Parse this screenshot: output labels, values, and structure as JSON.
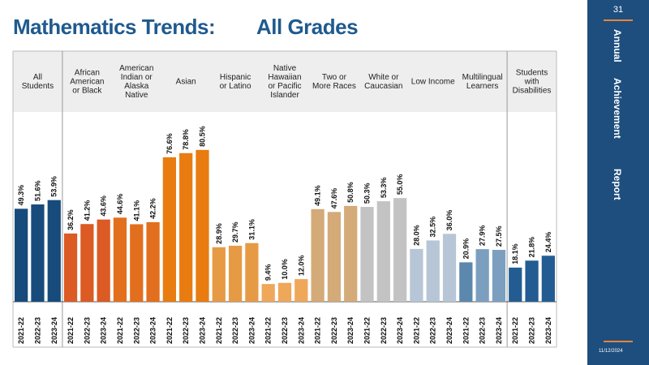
{
  "page": {
    "title_left": "Mathematics Trends:",
    "title_right": "All   Grades",
    "page_number": "31",
    "sidebar_words": [
      "Annual",
      "Achievement",
      "Report"
    ],
    "date": "11/12/2024"
  },
  "colors": {
    "sidebar": "#1d4e7e",
    "accent": "#e8833a",
    "title": "#1f5a8e",
    "header_bg": "#eeeeee"
  },
  "chart_data": {
    "type": "bar",
    "title": "Mathematics Trends: All Grades",
    "categories": [
      "2021-22",
      "2022-23",
      "2023-24"
    ],
    "ylim": [
      0,
      100
    ],
    "grid": false,
    "legend": "none",
    "groups": [
      {
        "label": "All Students",
        "values": [
          49.3,
          51.6,
          53.9
        ],
        "labels": [
          "49.3%",
          "51.6%",
          "53.9%"
        ],
        "colors": [
          "#174b7b",
          "#174b7b",
          "#174b7b"
        ]
      },
      {
        "label": "African American or Black",
        "values": [
          36.2,
          41.2,
          43.6
        ],
        "labels": [
          "36.2%",
          "41.2%",
          "43.6%"
        ],
        "colors": [
          "#dc5a24",
          "#dc5a24",
          "#dc5a24"
        ]
      },
      {
        "label": "American Indian or Alaska Native",
        "values": [
          44.6,
          41.1,
          42.2
        ],
        "labels": [
          "44.6%",
          "41.1%",
          "42.2%"
        ],
        "colors": [
          "#e26f1d",
          "#e26f1d",
          "#e26f1d"
        ]
      },
      {
        "label": "Asian",
        "values": [
          76.6,
          78.8,
          80.5
        ],
        "labels": [
          "76.6%",
          "78.8%",
          "80.5%"
        ],
        "colors": [
          "#e87c10",
          "#e87c10",
          "#e87c10"
        ]
      },
      {
        "label": "Hispanic or Latino",
        "values": [
          28.9,
          29.7,
          31.1
        ],
        "labels": [
          "28.9%",
          "29.7%",
          "31.1%"
        ],
        "colors": [
          "#e79a44",
          "#e79a44",
          "#e79a44"
        ]
      },
      {
        "label": "Native Hawaiian or Pacific Islander",
        "values": [
          9.4,
          10.0,
          12.0
        ],
        "labels": [
          "9.4%",
          "10.0%",
          "12.0%"
        ],
        "colors": [
          "#efa75a",
          "#efa75a",
          "#efa75a"
        ]
      },
      {
        "label": "Two or More Races",
        "values": [
          49.1,
          47.6,
          50.8
        ],
        "labels": [
          "49.1%",
          "47.6%",
          "50.8%"
        ],
        "colors": [
          "#d4aa78",
          "#d4aa78",
          "#d4aa78"
        ]
      },
      {
        "label": "White or Caucasian",
        "values": [
          50.3,
          53.3,
          55.0
        ],
        "labels": [
          "50.3%",
          "53.3%",
          "55.0%"
        ],
        "colors": [
          "#c3c3c3",
          "#c3c3c3",
          "#c3c3c3"
        ]
      },
      {
        "label": "Low Income",
        "values": [
          28.0,
          32.5,
          36.0
        ],
        "labels": [
          "28.0%",
          "32.5%",
          "36.0%"
        ],
        "colors": [
          "#b6c6d6",
          "#b6c6d6",
          "#b6c6d6"
        ]
      },
      {
        "label": "Multilingual Learners",
        "values": [
          20.9,
          27.9,
          27.5
        ],
        "labels": [
          "20.9%",
          "27.9%",
          "27.5%"
        ],
        "colors": [
          "#5d88ad",
          "#7c9fbf",
          "#7c9fbf"
        ]
      },
      {
        "label": "Students with Disabilities",
        "values": [
          18.1,
          21.8,
          24.4
        ],
        "labels": [
          "18.1%",
          "21.8%",
          "24.4%"
        ],
        "colors": [
          "#235c92",
          "#235c92",
          "#235c92"
        ]
      }
    ]
  }
}
